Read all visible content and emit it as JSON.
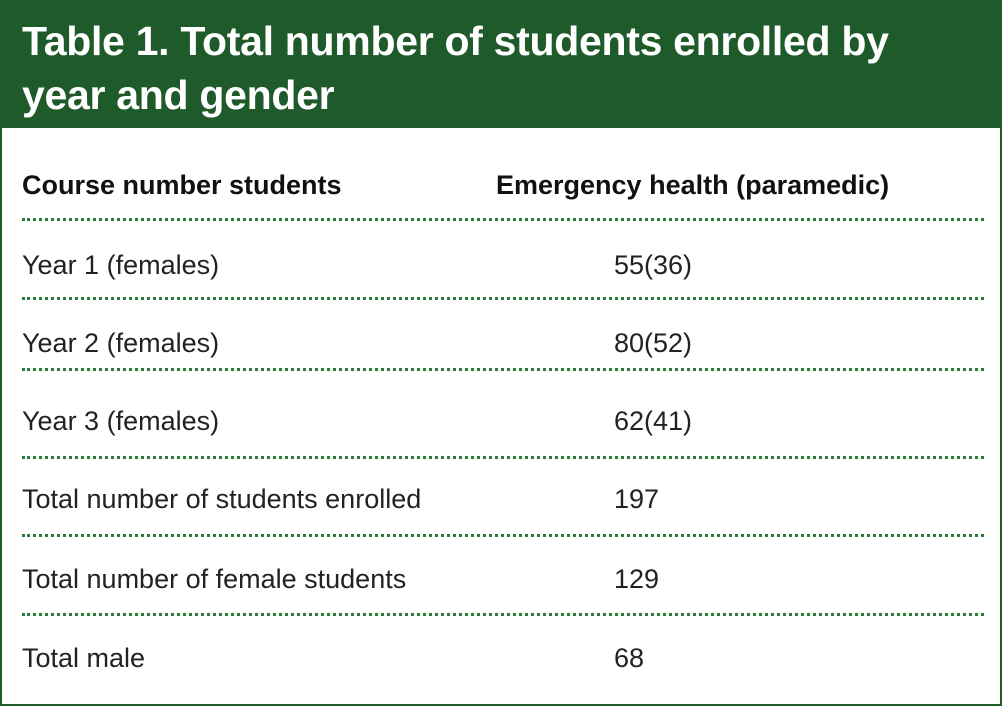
{
  "table": {
    "title": "Table 1. Total number of students enrolled by year and gender",
    "columns": [
      "Course number students",
      "Emergency health (paramedic)"
    ],
    "rows": [
      [
        "Year 1 (females)",
        "55(36)"
      ],
      [
        "Year 2 (females)",
        "80(52)"
      ],
      [
        "Year 3 (females)",
        "62(41)"
      ],
      [
        "Total number of students enrolled",
        "197"
      ],
      [
        "Total number of female students",
        "129"
      ],
      [
        "Total male",
        "68"
      ]
    ]
  },
  "colors": {
    "header_background": "#1f5a2b",
    "header_text": "#ffffff",
    "divider": "#2b7a3a",
    "border": "#1f5a2b"
  }
}
